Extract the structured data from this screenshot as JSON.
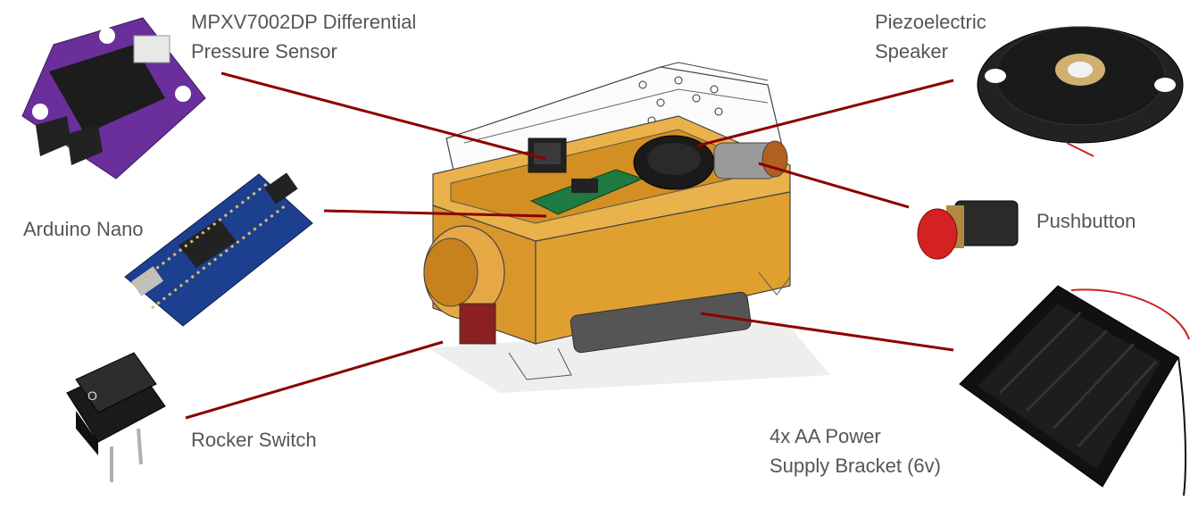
{
  "labels": {
    "pressure_sensor": [
      "MPXV7002DP Differential",
      "Pressure Sensor"
    ],
    "piezo_speaker": [
      "Piezoelectric",
      "Speaker"
    ],
    "arduino_nano": [
      "Arduino Nano"
    ],
    "pushbutton": [
      "Pushbutton"
    ],
    "rocker_switch": [
      "Rocker Switch"
    ],
    "battery_bracket": [
      "4x AA Power",
      "Supply Bracket (6v)"
    ]
  },
  "colors": {
    "leader_line": "#8b0000",
    "label_text": "#555555",
    "housing": "#e0a030",
    "pcb_purple": "#6a2f9a",
    "pcb_blue": "#1d3f8f",
    "button_red": "#d42222"
  },
  "icons": [
    "pressure-sensor-icon",
    "arduino-nano-icon",
    "rocker-switch-icon",
    "piezo-speaker-icon",
    "pushbutton-icon",
    "battery-holder-icon",
    "device-assembly-icon"
  ]
}
